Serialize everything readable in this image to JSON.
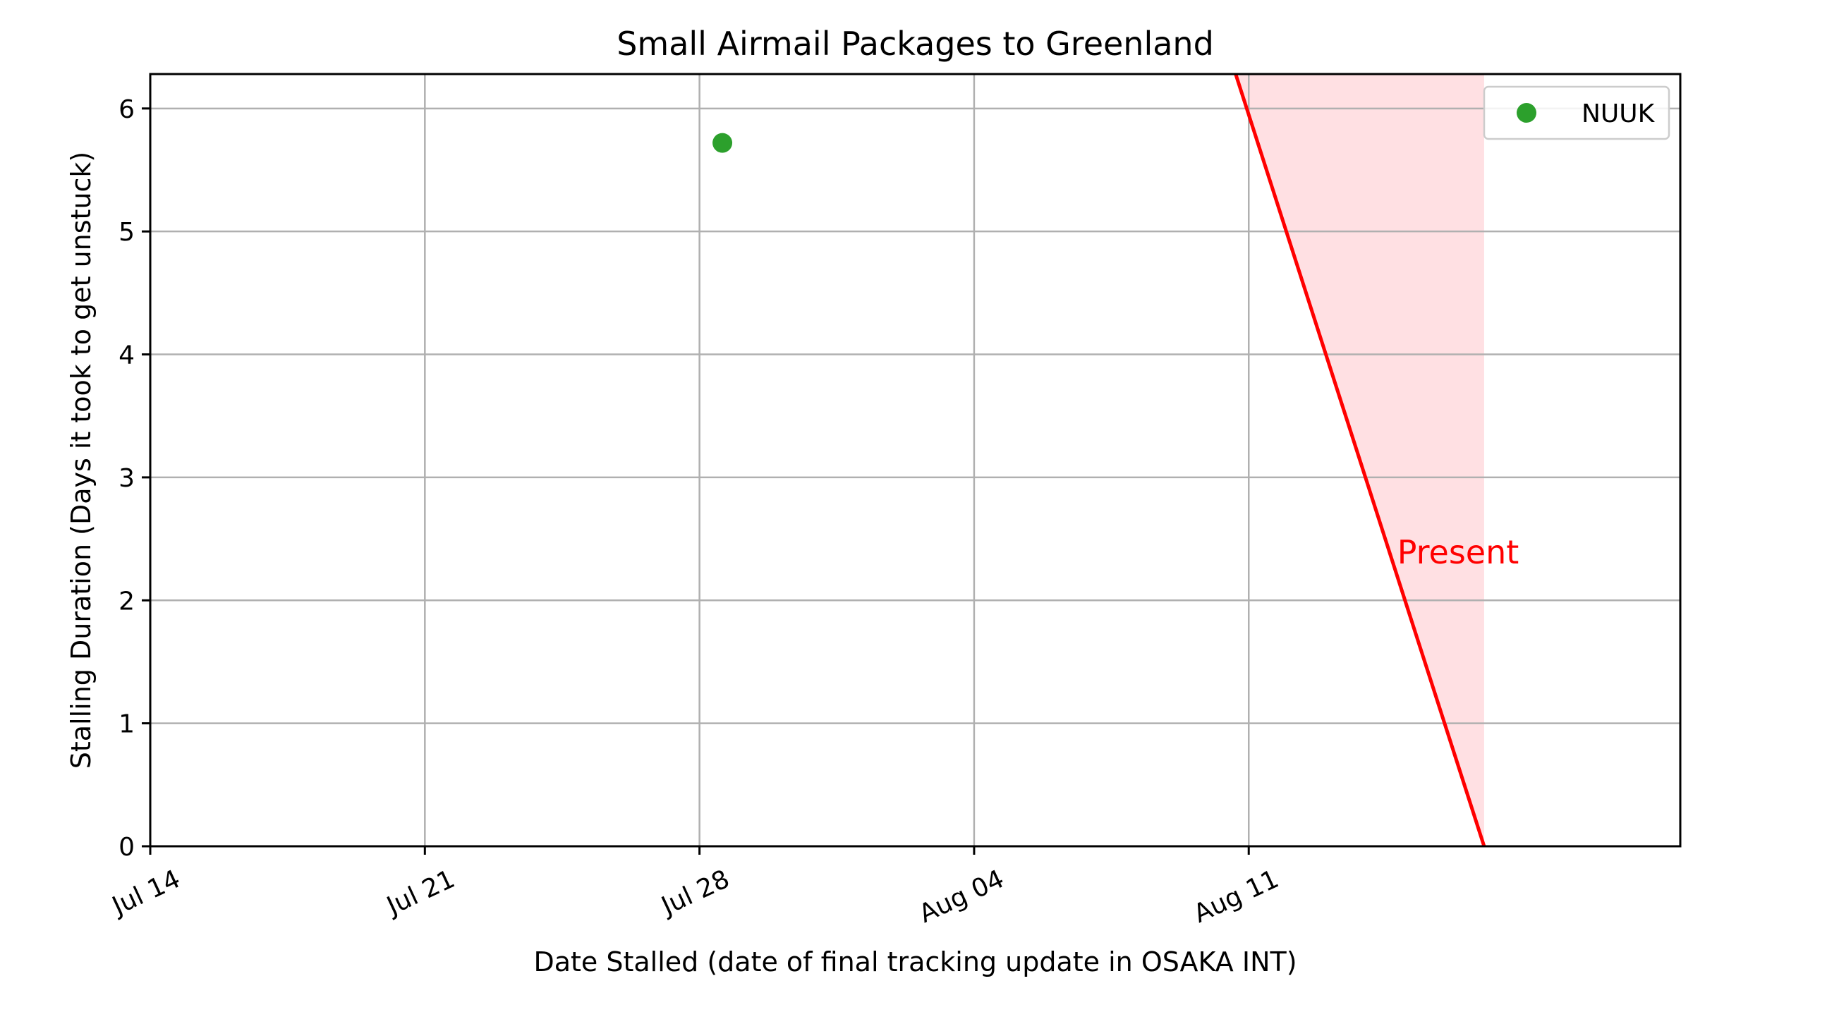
{
  "chart_data": {
    "type": "scatter",
    "title": "Small Airmail Packages to Greenland",
    "xlabel": "Date Stalled (date of final tracking update in OSAKA INT)",
    "ylabel": "Stalling Duration (Days it took to get unstuck)",
    "x_axis": {
      "type": "date",
      "range": [
        "2024-07-14",
        "2024-08-22"
      ],
      "ticks": [
        {
          "date": "2024-07-14",
          "label": "Jul 14"
        },
        {
          "date": "2024-07-21",
          "label": "Jul 21"
        },
        {
          "date": "2024-07-28",
          "label": "Jul 28"
        },
        {
          "date": "2024-08-04",
          "label": "Aug 04"
        },
        {
          "date": "2024-08-11",
          "label": "Aug 11"
        }
      ]
    },
    "y_axis": {
      "range": [
        0,
        6.28
      ],
      "ticks": [
        0,
        1,
        2,
        3,
        4,
        5,
        6
      ]
    },
    "grid": true,
    "legend": {
      "placement": "top-right"
    },
    "series": [
      {
        "name": "NUUK",
        "color": "#2ca02c",
        "points": [
          {
            "x": "2024-07-28T14:00",
            "y": 5.72
          }
        ]
      }
    ],
    "present_region": {
      "label": "Present",
      "color": "#ff0000",
      "fill_color": "#ffe0e3",
      "line_start": {
        "x": "2024-08-10T16:00",
        "y": 6.28
      },
      "line_end": {
        "x": "2024-08-17T00:00",
        "y": 0
      },
      "shade_right_edge": "2024-08-17T00:00",
      "label_anchor": {
        "x": "2024-08-15T00:00",
        "y": 2.3
      }
    }
  }
}
